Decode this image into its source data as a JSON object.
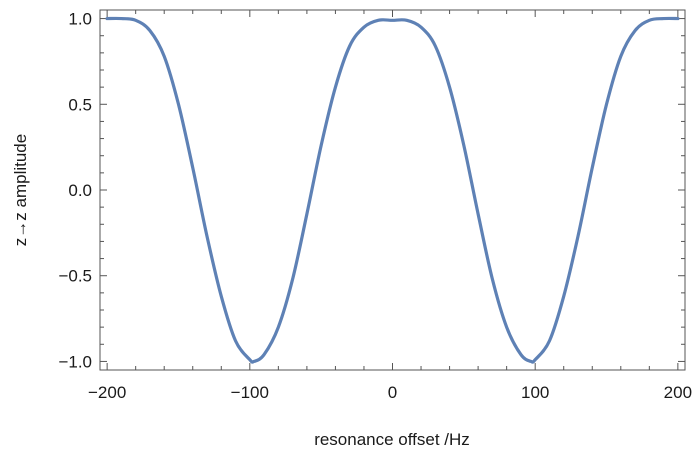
{
  "chart_data": {
    "type": "line",
    "title": "",
    "xlabel": "resonance offset /Hz",
    "ylabel": "z→z amplitude",
    "xlim": [
      -205,
      205
    ],
    "ylim": [
      -1.05,
      1.05
    ],
    "x_ticks": [
      -200,
      -100,
      0,
      100,
      200
    ],
    "x_tick_labels": [
      "−200",
      "−100",
      "0",
      "100",
      "200"
    ],
    "y_ticks": [
      1.0,
      0.5,
      0.0,
      -0.5,
      -1.0
    ],
    "y_tick_labels": [
      "1.0",
      "0.5",
      "0.0",
      "−0.5",
      "−1.0"
    ],
    "grid": false,
    "legend": "none",
    "colors": {
      "series": "#5e81b5",
      "frame": "#555555"
    },
    "series": [
      {
        "x": [
          -200,
          -190,
          -180,
          -170,
          -160,
          -150,
          -140,
          -130,
          -120,
          -110,
          -100,
          -97,
          -90,
          -80,
          -70,
          -60,
          -50,
          -40,
          -30,
          -20,
          -10,
          0,
          10,
          20,
          30,
          40,
          50,
          60,
          70,
          80,
          90,
          97,
          100,
          110,
          120,
          130,
          140,
          150,
          160,
          170,
          180,
          190,
          200
        ],
        "y": [
          1.0,
          1.0,
          0.99,
          0.93,
          0.78,
          0.5,
          0.13,
          -0.27,
          -0.62,
          -0.88,
          -0.99,
          -1.0,
          -0.96,
          -0.8,
          -0.52,
          -0.14,
          0.26,
          0.6,
          0.84,
          0.95,
          0.99,
          0.99,
          0.99,
          0.95,
          0.84,
          0.6,
          0.26,
          -0.14,
          -0.52,
          -0.8,
          -0.96,
          -1.0,
          -0.99,
          -0.88,
          -0.62,
          -0.27,
          0.13,
          0.5,
          0.78,
          0.93,
          0.99,
          1.0,
          1.0
        ]
      }
    ]
  }
}
